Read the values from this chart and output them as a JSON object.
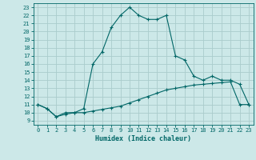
{
  "title": "",
  "xlabel": "Humidex (Indice chaleur)",
  "ylabel": "",
  "bg_color": "#cce8e8",
  "grid_color": "#aacccc",
  "line_color": "#006666",
  "xlim": [
    -0.5,
    23.5
  ],
  "ylim": [
    8.5,
    23.5
  ],
  "xticks": [
    0,
    1,
    2,
    3,
    4,
    5,
    6,
    7,
    8,
    9,
    10,
    11,
    12,
    13,
    14,
    15,
    16,
    17,
    18,
    19,
    20,
    21,
    22,
    23
  ],
  "yticks": [
    9,
    10,
    11,
    12,
    13,
    14,
    15,
    16,
    17,
    18,
    19,
    20,
    21,
    22,
    23
  ],
  "line1_x": [
    0,
    1,
    2,
    3,
    4,
    5,
    6,
    7,
    8,
    9,
    10,
    11,
    12,
    13,
    14,
    15,
    16,
    17,
    18,
    19,
    20,
    21,
    22,
    23
  ],
  "line1_y": [
    11,
    10.5,
    9.5,
    10,
    10,
    10.5,
    16,
    17.5,
    20.5,
    22,
    23,
    22,
    21.5,
    21.5,
    22,
    17,
    16.5,
    14.5,
    14,
    14.5,
    14,
    14,
    13.5,
    11
  ],
  "line2_x": [
    0,
    1,
    2,
    3,
    4,
    5,
    6,
    7,
    8,
    9,
    10,
    11,
    12,
    13,
    14,
    15,
    16,
    17,
    18,
    19,
    20,
    21,
    22,
    23
  ],
  "line2_y": [
    11,
    10.5,
    9.5,
    9.8,
    10,
    10,
    10.2,
    10.4,
    10.6,
    10.8,
    11.2,
    11.6,
    12.0,
    12.4,
    12.8,
    13.0,
    13.2,
    13.4,
    13.5,
    13.6,
    13.7,
    13.8,
    11.0,
    11.0
  ]
}
